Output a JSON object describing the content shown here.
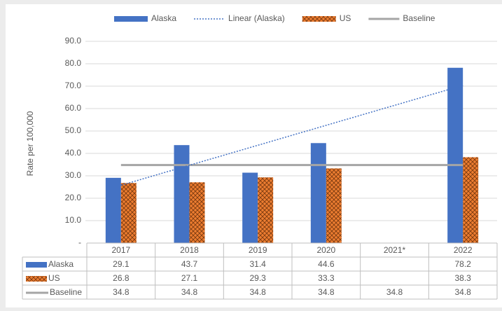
{
  "chart_data": {
    "type": "bar",
    "y_label": "Rate per 100,000",
    "categories": [
      "2017",
      "2018",
      "2019",
      "2020",
      "2021*",
      "2022"
    ],
    "series": [
      {
        "name": "Alaska",
        "type": "bar",
        "color": "#4472c4",
        "values": [
          29.1,
          43.7,
          31.4,
          44.6,
          null,
          78.2
        ],
        "trendline": {
          "name": "Linear (Alaska)",
          "type": "linear"
        }
      },
      {
        "name": "US",
        "type": "bar",
        "color": "#ed7d31",
        "pattern": "crosshatch",
        "values": [
          26.8,
          27.1,
          29.3,
          33.3,
          null,
          38.3
        ]
      },
      {
        "name": "Baseline",
        "type": "line",
        "color": "#a5a5a5",
        "values": [
          34.8,
          34.8,
          34.8,
          34.8,
          34.8,
          34.8
        ]
      }
    ],
    "ylim": [
      0,
      90
    ],
    "yticks": [
      {
        "value": 0,
        "label": "-"
      },
      {
        "value": 10,
        "label": "10.0"
      },
      {
        "value": 20,
        "label": "20.0"
      },
      {
        "value": 30,
        "label": "30.0"
      },
      {
        "value": 40,
        "label": "40.0"
      },
      {
        "value": 50,
        "label": "50.0"
      },
      {
        "value": 60,
        "label": "60.0"
      },
      {
        "value": 70,
        "label": "70.0"
      },
      {
        "value": 80,
        "label": "80.0"
      },
      {
        "value": 90,
        "label": "90.0"
      }
    ],
    "grid": true,
    "legend": "top",
    "data_table": true
  }
}
